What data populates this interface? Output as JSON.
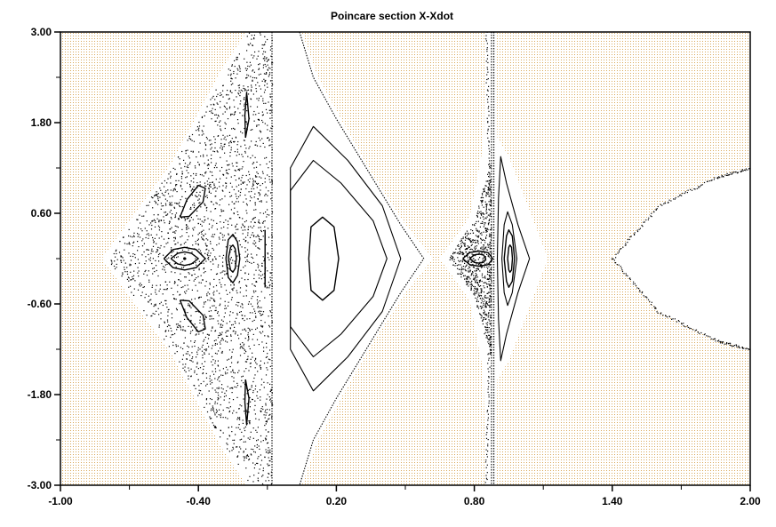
{
  "chart_data": {
    "type": "scatter",
    "title": "Poincare section X-Xdot",
    "xlabel": "",
    "ylabel": "",
    "xlim": [
      -1.0,
      2.0
    ],
    "ylim": [
      -3.0,
      3.0
    ],
    "x_ticks": [
      "-1.00",
      "-0.40",
      "0.20",
      "0.80",
      "1.40",
      "2.00"
    ],
    "y_ticks": [
      "3.00",
      "1.80",
      "0.60",
      "-0.60",
      "-1.80",
      "-3.00"
    ],
    "grid": false,
    "legend": "none",
    "colors": {
      "background_field": "#f5deb3",
      "dots": "#000000",
      "frame": "#000000"
    },
    "curves": [
      {
        "name": "",
        "kind": "separatrix",
        "points": [
          [
            -0.08,
            3.0
          ],
          [
            -0.08,
            -3.0
          ]
        ]
      },
      {
        "name": "",
        "kind": "outer-orbit",
        "points": [
          [
            0.04,
            3.0
          ],
          [
            0.1,
            2.4
          ],
          [
            0.2,
            1.85
          ],
          [
            0.35,
            1.1
          ],
          [
            0.48,
            0.45
          ],
          [
            0.58,
            0.0
          ],
          [
            0.48,
            -0.45
          ],
          [
            0.35,
            -1.1
          ],
          [
            0.2,
            -1.85
          ],
          [
            0.1,
            -2.4
          ],
          [
            0.04,
            -3.0
          ]
        ]
      },
      {
        "name": "",
        "kind": "orbit",
        "points": [
          [
            0.0,
            0.0
          ],
          [
            0.0,
            1.2
          ],
          [
            0.1,
            1.75
          ],
          [
            0.25,
            1.3
          ],
          [
            0.4,
            0.7
          ],
          [
            0.48,
            0.0
          ],
          [
            0.4,
            -0.7
          ],
          [
            0.25,
            -1.3
          ],
          [
            0.1,
            -1.75
          ],
          [
            0.0,
            -1.2
          ],
          [
            0.0,
            0.0
          ]
        ]
      },
      {
        "name": "",
        "kind": "orbit",
        "points": [
          [
            0.0,
            0.0
          ],
          [
            0.0,
            0.9
          ],
          [
            0.1,
            1.3
          ],
          [
            0.22,
            1.0
          ],
          [
            0.36,
            0.5
          ],
          [
            0.42,
            0.0
          ],
          [
            0.36,
            -0.5
          ],
          [
            0.22,
            -1.0
          ],
          [
            0.1,
            -1.3
          ],
          [
            0.0,
            -0.9
          ],
          [
            0.0,
            0.0
          ]
        ]
      },
      {
        "name": "",
        "kind": "island",
        "points": [
          [
            0.08,
            0.0
          ],
          [
            0.09,
            0.42
          ],
          [
            0.14,
            0.55
          ],
          [
            0.19,
            0.42
          ],
          [
            0.21,
            0.0
          ],
          [
            0.19,
            -0.42
          ],
          [
            0.14,
            -0.55
          ],
          [
            0.09,
            -0.42
          ],
          [
            0.08,
            0.0
          ]
        ]
      },
      {
        "name": "",
        "kind": "island",
        "points": [
          [
            -0.55,
            0.0
          ],
          [
            -0.51,
            0.12
          ],
          [
            -0.46,
            0.15
          ],
          [
            -0.41,
            0.12
          ],
          [
            -0.37,
            0.0
          ],
          [
            -0.41,
            -0.12
          ],
          [
            -0.46,
            -0.15
          ],
          [
            -0.51,
            -0.12
          ],
          [
            -0.55,
            0.0
          ]
        ]
      },
      {
        "name": "",
        "kind": "island",
        "points": [
          [
            -0.52,
            0.0
          ],
          [
            -0.49,
            0.07
          ],
          [
            -0.46,
            0.09
          ],
          [
            -0.43,
            0.07
          ],
          [
            -0.4,
            0.0
          ],
          [
            -0.43,
            -0.07
          ],
          [
            -0.46,
            -0.09
          ],
          [
            -0.49,
            -0.07
          ],
          [
            -0.52,
            0.0
          ]
        ]
      },
      {
        "name": "",
        "kind": "island",
        "points": [
          [
            -0.48,
            0.55
          ],
          [
            -0.45,
            0.78
          ],
          [
            -0.4,
            0.97
          ],
          [
            -0.37,
            0.93
          ],
          [
            -0.38,
            0.75
          ],
          [
            -0.44,
            0.56
          ],
          [
            -0.48,
            0.55
          ]
        ]
      },
      {
        "name": "",
        "kind": "island",
        "points": [
          [
            -0.48,
            -0.55
          ],
          [
            -0.45,
            -0.78
          ],
          [
            -0.4,
            -0.97
          ],
          [
            -0.37,
            -0.93
          ],
          [
            -0.38,
            -0.75
          ],
          [
            -0.44,
            -0.56
          ],
          [
            -0.48,
            -0.55
          ]
        ]
      },
      {
        "name": "",
        "kind": "island",
        "points": [
          [
            -0.28,
            0.0
          ],
          [
            -0.27,
            0.25
          ],
          [
            -0.25,
            0.32
          ],
          [
            -0.23,
            0.22
          ],
          [
            -0.22,
            0.0
          ],
          [
            -0.23,
            -0.22
          ],
          [
            -0.25,
            -0.32
          ],
          [
            -0.27,
            -0.25
          ],
          [
            -0.28,
            0.0
          ]
        ]
      },
      {
        "name": "",
        "kind": "island",
        "points": [
          [
            -0.27,
            0.0
          ],
          [
            -0.26,
            0.15
          ],
          [
            -0.25,
            0.18
          ],
          [
            -0.24,
            0.13
          ],
          [
            -0.235,
            0.0
          ],
          [
            -0.24,
            -0.13
          ],
          [
            -0.25,
            -0.18
          ],
          [
            -0.26,
            -0.15
          ],
          [
            -0.27,
            0.0
          ]
        ]
      },
      {
        "name": "",
        "kind": "island",
        "points": [
          [
            -0.195,
            1.6
          ],
          [
            -0.18,
            1.85
          ],
          [
            -0.19,
            2.2
          ],
          [
            -0.198,
            1.9
          ],
          [
            -0.195,
            1.6
          ]
        ]
      },
      {
        "name": "",
        "kind": "island",
        "points": [
          [
            -0.195,
            -1.6
          ],
          [
            -0.18,
            -1.85
          ],
          [
            -0.19,
            -2.2
          ],
          [
            -0.198,
            -1.9
          ],
          [
            -0.195,
            -1.6
          ]
        ]
      },
      {
        "name": "",
        "kind": "island",
        "points": [
          [
            -0.11,
            0.38
          ],
          [
            -0.11,
            -0.38
          ]
        ]
      },
      {
        "name": "",
        "kind": "island",
        "points": [
          [
            0.75,
            0.0
          ],
          [
            0.78,
            0.08
          ],
          [
            0.82,
            0.1
          ],
          [
            0.86,
            0.08
          ],
          [
            0.88,
            0.0
          ],
          [
            0.86,
            -0.08
          ],
          [
            0.82,
            -0.1
          ],
          [
            0.78,
            -0.08
          ],
          [
            0.75,
            0.0
          ]
        ]
      },
      {
        "name": "",
        "kind": "island",
        "points": [
          [
            0.78,
            0.0
          ],
          [
            0.8,
            0.05
          ],
          [
            0.82,
            0.06
          ],
          [
            0.84,
            0.05
          ],
          [
            0.85,
            0.0
          ],
          [
            0.84,
            -0.05
          ],
          [
            0.82,
            -0.06
          ],
          [
            0.8,
            -0.05
          ],
          [
            0.78,
            0.0
          ]
        ]
      },
      {
        "name": "",
        "kind": "separatrix",
        "points": [
          [
            0.875,
            3.0
          ],
          [
            0.875,
            -3.0
          ]
        ]
      },
      {
        "name": "",
        "kind": "separatrix",
        "points": [
          [
            0.885,
            3.0
          ],
          [
            0.885,
            -3.0
          ]
        ]
      },
      {
        "name": "",
        "kind": "orbit",
        "points": [
          [
            0.9,
            0.0
          ],
          [
            0.905,
            0.8
          ],
          [
            0.915,
            1.35
          ],
          [
            0.94,
            1.0
          ],
          [
            0.99,
            0.45
          ],
          [
            1.04,
            0.0
          ],
          [
            0.99,
            -0.45
          ],
          [
            0.94,
            -1.0
          ],
          [
            0.915,
            -1.35
          ],
          [
            0.905,
            -0.8
          ],
          [
            0.9,
            0.0
          ]
        ]
      },
      {
        "name": "",
        "kind": "orbit",
        "points": [
          [
            0.92,
            0.0
          ],
          [
            0.93,
            0.45
          ],
          [
            0.945,
            0.62
          ],
          [
            0.965,
            0.45
          ],
          [
            0.985,
            0.0
          ],
          [
            0.965,
            -0.45
          ],
          [
            0.945,
            -0.62
          ],
          [
            0.93,
            -0.45
          ],
          [
            0.92,
            0.0
          ]
        ]
      },
      {
        "name": "",
        "kind": "island",
        "points": [
          [
            0.93,
            0.0
          ],
          [
            0.94,
            0.3
          ],
          [
            0.95,
            0.38
          ],
          [
            0.965,
            0.3
          ],
          [
            0.975,
            0.0
          ],
          [
            0.965,
            -0.3
          ],
          [
            0.95,
            -0.38
          ],
          [
            0.94,
            -0.3
          ],
          [
            0.93,
            0.0
          ]
        ]
      },
      {
        "name": "",
        "kind": "island",
        "points": [
          [
            0.945,
            0.0
          ],
          [
            0.95,
            0.15
          ],
          [
            0.955,
            0.18
          ],
          [
            0.962,
            0.15
          ],
          [
            0.966,
            0.0
          ],
          [
            0.962,
            -0.15
          ],
          [
            0.955,
            -0.18
          ],
          [
            0.95,
            -0.15
          ],
          [
            0.945,
            0.0
          ]
        ]
      }
    ],
    "dot_regions": [
      {
        "name": "",
        "kind": "chaotic-sea",
        "outline": [
          [
            -0.8,
            0.0
          ],
          [
            -0.52,
            1.2
          ],
          [
            -0.3,
            2.4
          ],
          [
            -0.18,
            3.0
          ],
          [
            -0.08,
            3.0
          ],
          [
            -0.08,
            -3.0
          ],
          [
            -0.18,
            -3.0
          ],
          [
            -0.3,
            -2.4
          ],
          [
            -0.52,
            -1.2
          ],
          [
            -0.8,
            0.0
          ]
        ]
      },
      {
        "name": "",
        "kind": "chaotic-sea",
        "outline": [
          [
            0.68,
            0.0
          ],
          [
            0.8,
            0.52
          ],
          [
            0.87,
            1.3
          ],
          [
            0.87,
            -1.3
          ],
          [
            0.8,
            -0.52
          ],
          [
            0.68,
            0.0
          ]
        ]
      },
      {
        "name": "",
        "kind": "boundary-dots",
        "outline": [
          [
            0.85,
            3.0
          ],
          [
            0.86,
            1.5
          ],
          [
            0.87,
            0.0
          ],
          [
            0.86,
            -1.5
          ],
          [
            0.85,
            -3.0
          ]
        ]
      },
      {
        "name": "",
        "kind": "boundary-dots",
        "outline": [
          [
            1.4,
            0.0
          ],
          [
            1.6,
            0.7
          ],
          [
            1.85,
            1.08
          ],
          [
            2.0,
            1.2
          ]
        ]
      },
      {
        "name": "",
        "kind": "boundary-dots",
        "outline": [
          [
            1.4,
            0.0
          ],
          [
            1.6,
            -0.7
          ],
          [
            1.85,
            -1.08
          ],
          [
            2.0,
            -1.2
          ]
        ]
      }
    ]
  }
}
